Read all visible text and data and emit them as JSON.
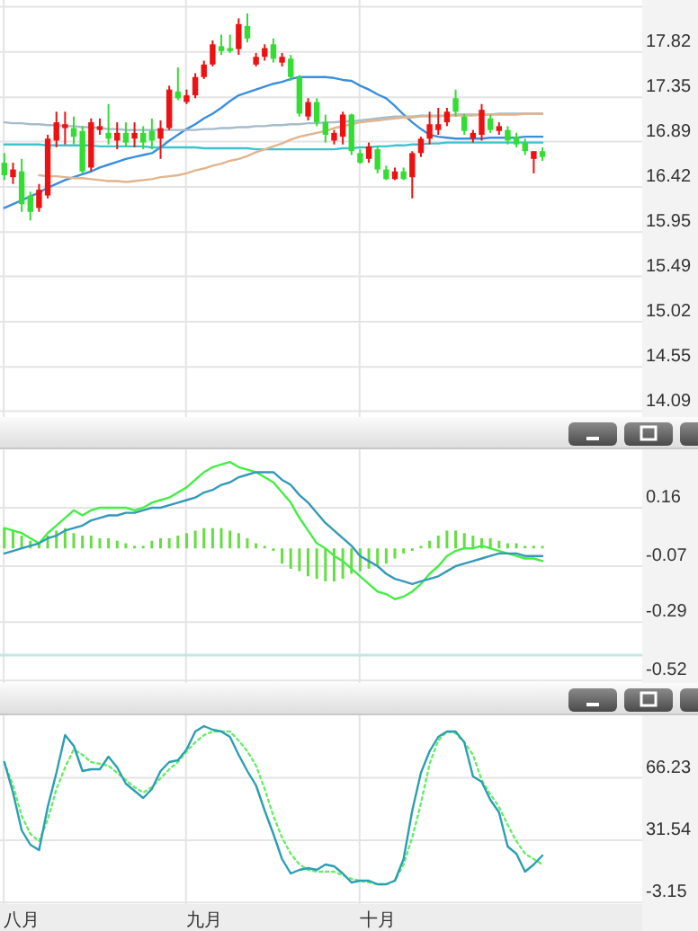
{
  "chart_data": [
    {
      "type": "candlestick",
      "categories": [
        null,
        null,
        null,
        null,
        null,
        null,
        null,
        null,
        null,
        null,
        null,
        null,
        null,
        null,
        null,
        null,
        null,
        null,
        null,
        null,
        null,
        null,
        null,
        null,
        null,
        null,
        null,
        null,
        null,
        null,
        null,
        null,
        null,
        null,
        null,
        null,
        null,
        null,
        null,
        null,
        null,
        null,
        null,
        null,
        null,
        null,
        null,
        null,
        null,
        null,
        null,
        null,
        null,
        null,
        null,
        null,
        null,
        null,
        null,
        null,
        null,
        null,
        null,
        null,
        null,
        null,
        null,
        null,
        null,
        null,
        null,
        null,
        null,
        null
      ],
      "ohlc": [
        [
          16.67,
          16.77,
          16.49,
          16.54
        ],
        [
          16.52,
          16.67,
          16.45,
          16.6
        ],
        [
          16.58,
          16.71,
          16.16,
          16.24
        ],
        [
          16.33,
          16.37,
          16.07,
          16.16
        ],
        [
          16.2,
          16.45,
          16.16,
          16.39
        ],
        [
          16.33,
          16.96,
          16.3,
          16.92
        ],
        [
          16.9,
          17.2,
          16.83,
          17.09
        ],
        [
          17.03,
          17.2,
          16.86,
          17.07
        ],
        [
          17.03,
          17.15,
          16.86,
          16.94
        ],
        [
          17.0,
          17.05,
          16.56,
          16.58
        ],
        [
          16.62,
          17.13,
          16.58,
          17.09
        ],
        [
          17.01,
          17.13,
          16.96,
          17.05
        ],
        [
          16.98,
          17.28,
          16.86,
          16.92
        ],
        [
          16.9,
          17.09,
          16.81,
          16.98
        ],
        [
          16.98,
          17.09,
          16.83,
          16.88
        ],
        [
          16.92,
          17.09,
          16.83,
          16.98
        ],
        [
          16.98,
          17.05,
          16.81,
          16.88
        ],
        [
          17.0,
          17.13,
          16.81,
          16.9
        ],
        [
          16.92,
          17.11,
          16.71,
          17.03
        ],
        [
          17.03,
          17.47,
          17.01,
          17.43
        ],
        [
          17.41,
          17.66,
          17.32,
          17.34
        ],
        [
          17.3,
          17.43,
          17.28,
          17.37
        ],
        [
          17.37,
          17.6,
          17.34,
          17.56
        ],
        [
          17.56,
          17.73,
          17.54,
          17.69
        ],
        [
          17.69,
          17.94,
          17.67,
          17.9
        ],
        [
          17.88,
          18.0,
          17.79,
          17.83
        ],
        [
          17.86,
          18.0,
          17.81,
          17.83
        ],
        [
          17.85,
          18.17,
          17.79,
          18.11
        ],
        [
          18.09,
          18.22,
          17.92,
          17.96
        ],
        [
          17.69,
          17.81,
          17.67,
          17.77
        ],
        [
          17.77,
          17.9,
          17.73,
          17.86
        ],
        [
          17.9,
          17.96,
          17.71,
          17.75
        ],
        [
          17.71,
          17.81,
          17.67,
          17.77
        ],
        [
          17.75,
          17.79,
          17.52,
          17.56
        ],
        [
          17.56,
          17.58,
          17.15,
          17.18
        ],
        [
          17.15,
          17.34,
          17.11,
          17.3
        ],
        [
          17.3,
          17.34,
          17.05,
          17.09
        ],
        [
          17.09,
          17.17,
          16.88,
          16.96
        ],
        [
          16.9,
          17.01,
          16.86,
          16.98
        ],
        [
          16.94,
          17.2,
          16.86,
          17.17
        ],
        [
          17.17,
          17.18,
          16.75,
          16.79
        ],
        [
          16.77,
          16.81,
          16.66,
          16.67
        ],
        [
          16.71,
          16.88,
          16.67,
          16.84
        ],
        [
          16.81,
          16.84,
          16.56,
          16.6
        ],
        [
          16.6,
          16.64,
          16.49,
          16.5
        ],
        [
          16.5,
          16.62,
          16.49,
          16.58
        ],
        [
          16.58,
          16.62,
          16.49,
          16.5
        ],
        [
          16.52,
          16.79,
          16.3,
          16.77
        ],
        [
          16.77,
          16.94,
          16.73,
          16.92
        ],
        [
          16.92,
          17.2,
          16.86,
          17.07
        ],
        [
          17.01,
          17.24,
          16.96,
          17.07
        ],
        [
          17.09,
          17.24,
          17.05,
          17.2
        ],
        [
          17.34,
          17.43,
          17.15,
          17.2
        ],
        [
          17.15,
          17.18,
          16.96,
          17.0
        ],
        [
          16.92,
          17.01,
          16.88,
          16.98
        ],
        [
          16.96,
          17.28,
          16.9,
          17.22
        ],
        [
          17.13,
          17.17,
          16.98,
          17.01
        ],
        [
          17.0,
          17.09,
          16.96,
          17.05
        ],
        [
          17.01,
          17.05,
          16.86,
          16.9
        ],
        [
          16.94,
          16.98,
          16.83,
          16.86
        ],
        [
          16.88,
          16.92,
          16.75,
          16.79
        ],
        [
          16.71,
          16.79,
          16.56,
          16.79
        ],
        [
          16.79,
          16.83,
          16.69,
          16.73
        ],
        null,
        null,
        null,
        null,
        null,
        null,
        null,
        null,
        null,
        null,
        null
      ],
      "series": [
        {
          "type": "line",
          "color": "#3a8ede",
          "values": [
            16.2,
            16.24,
            16.28,
            16.32,
            16.36,
            16.41,
            16.45,
            16.49,
            16.52,
            16.55,
            16.58,
            16.62,
            16.65,
            16.68,
            16.71,
            16.73,
            16.75,
            16.77,
            16.83,
            16.9,
            16.96,
            17.02,
            17.07,
            17.13,
            17.18,
            17.24,
            17.31,
            17.37,
            17.4,
            17.43,
            17.46,
            17.49,
            17.51,
            17.54,
            17.56,
            17.56,
            17.56,
            17.56,
            17.55,
            17.53,
            17.52,
            17.47,
            17.43,
            17.38,
            17.34,
            17.26,
            17.17,
            17.09,
            17.02,
            16.96,
            16.94,
            16.93,
            16.92,
            16.92,
            16.92,
            16.92,
            16.93,
            16.93,
            16.93,
            16.93,
            16.94,
            16.94,
            16.94,
            null,
            null,
            null,
            null,
            null,
            null,
            null,
            null,
            null,
            null,
            null
          ]
        },
        {
          "type": "line",
          "color": "#a4bccb",
          "values": [
            17.09,
            17.08,
            17.08,
            17.07,
            17.07,
            17.06,
            17.06,
            17.05,
            17.05,
            17.04,
            17.04,
            17.03,
            17.02,
            17.02,
            17.01,
            17.01,
            17.01,
            17.01,
            17.01,
            17.01,
            17.01,
            17.01,
            17.01,
            17.02,
            17.02,
            17.03,
            17.03,
            17.04,
            17.04,
            17.05,
            17.05,
            17.06,
            17.06,
            17.07,
            17.07,
            17.08,
            17.08,
            17.09,
            17.09,
            17.1,
            17.1,
            17.11,
            17.12,
            17.13,
            17.14,
            17.15,
            17.15,
            17.15,
            17.16,
            17.16,
            17.16,
            17.16,
            17.17,
            17.17,
            17.17,
            17.17,
            17.17,
            17.18,
            17.18,
            17.18,
            17.18,
            17.18,
            17.18,
            null,
            null,
            null,
            null,
            null,
            null,
            null,
            null,
            null,
            null,
            null
          ]
        },
        {
          "type": "line",
          "color": "#3cc4cc",
          "values": [
            16.86,
            16.86,
            16.86,
            16.86,
            16.86,
            16.85,
            16.85,
            16.85,
            16.85,
            16.85,
            16.85,
            16.84,
            16.84,
            16.84,
            16.84,
            16.84,
            16.84,
            16.83,
            16.83,
            16.83,
            16.83,
            16.83,
            16.83,
            16.82,
            16.82,
            16.82,
            16.82,
            16.82,
            16.82,
            16.81,
            16.81,
            16.81,
            16.81,
            16.81,
            16.81,
            16.81,
            16.81,
            16.81,
            16.81,
            16.82,
            16.82,
            16.83,
            16.83,
            16.84,
            16.84,
            16.85,
            16.85,
            16.86,
            16.86,
            16.87,
            16.87,
            16.88,
            16.88,
            16.88,
            16.88,
            16.88,
            16.88,
            16.88,
            16.88,
            16.88,
            16.88,
            16.88,
            16.88,
            null,
            null,
            null,
            null,
            null,
            null,
            null,
            null,
            null,
            null,
            null
          ]
        },
        {
          "type": "line",
          "color": "#e2b48c",
          "values": [
            null,
            null,
            null,
            null,
            16.54,
            16.53,
            16.53,
            16.52,
            16.51,
            16.51,
            16.5,
            16.49,
            16.48,
            16.48,
            16.47,
            16.48,
            16.49,
            16.5,
            16.52,
            16.53,
            16.54,
            16.56,
            16.59,
            16.61,
            16.64,
            16.66,
            16.69,
            16.71,
            16.74,
            16.78,
            16.81,
            16.84,
            16.87,
            16.91,
            16.94,
            16.96,
            16.98,
            17.0,
            17.03,
            17.05,
            17.07,
            17.09,
            17.1,
            17.11,
            17.12,
            17.13,
            17.14,
            17.14,
            17.15,
            17.15,
            17.15,
            17.16,
            17.16,
            17.16,
            17.16,
            17.17,
            17.17,
            17.17,
            17.17,
            17.17,
            17.18,
            17.18,
            17.18,
            null,
            null,
            null,
            null,
            null,
            null,
            null,
            null,
            null,
            null,
            null
          ]
        }
      ],
      "ylim": [
        14.03,
        18.36
      ],
      "yticks": [
        14.09,
        14.55,
        15.02,
        15.49,
        15.95,
        16.42,
        16.89,
        17.35,
        17.82,
        {
          "value": 18.29,
          "label": null
        }
      ],
      "grid": true,
      "tick_labels": "y"
    },
    {
      "type": "bar",
      "categories": [
        null,
        null,
        null,
        null,
        null,
        null,
        null,
        null,
        null,
        null,
        null,
        null,
        null,
        null,
        null,
        null,
        null,
        null,
        null,
        null,
        null,
        null,
        null,
        null,
        null,
        null,
        null,
        null,
        null,
        null,
        null,
        null,
        null,
        null,
        null,
        null,
        null,
        null,
        null,
        null,
        null,
        null,
        null,
        null,
        null,
        null,
        null,
        null,
        null,
        null,
        null,
        null,
        null,
        null,
        null,
        null,
        null,
        null,
        null,
        null,
        null,
        null,
        null,
        null,
        null,
        null,
        null,
        null,
        null,
        null,
        null,
        null,
        null,
        null
      ],
      "series": [
        {
          "type": "bar",
          "color": "#66dd44",
          "values": [
            0.08,
            0.07,
            0.05,
            0.03,
            0.02,
            0.05,
            0.07,
            0.08,
            0.06,
            0.05,
            0.05,
            0.04,
            0.04,
            0.03,
            0.02,
            0.01,
            0.01,
            0.03,
            0.04,
            0.04,
            0.05,
            0.06,
            0.07,
            0.08,
            0.08,
            0.08,
            0.07,
            0.06,
            0.04,
            0.02,
            0.01,
            -0.01,
            -0.06,
            -0.08,
            -0.09,
            -0.11,
            -0.12,
            -0.13,
            -0.13,
            -0.12,
            -0.1,
            -0.09,
            -0.08,
            -0.07,
            -0.06,
            -0.04,
            -0.02,
            -0.01,
            0.01,
            0.03,
            0.05,
            0.07,
            0.07,
            0.06,
            0.05,
            0.04,
            0.04,
            0.03,
            0.02,
            0.02,
            0.01,
            0.01,
            0.01,
            null,
            null,
            null,
            null,
            null,
            null,
            null,
            null,
            null,
            null,
            null
          ]
        },
        {
          "type": "line",
          "color": "#44ee44",
          "values": [
            0.08,
            0.07,
            0.06,
            0.04,
            0.02,
            0.06,
            0.09,
            0.12,
            0.15,
            0.13,
            0.15,
            0.16,
            0.16,
            0.16,
            0.16,
            0.15,
            0.16,
            0.18,
            0.19,
            0.2,
            0.22,
            0.24,
            0.27,
            0.3,
            0.32,
            0.33,
            0.34,
            0.32,
            0.31,
            0.3,
            0.28,
            0.26,
            0.22,
            0.18,
            0.12,
            0.07,
            0.02,
            0.0,
            -0.03,
            -0.05,
            -0.08,
            -0.11,
            -0.14,
            -0.17,
            -0.18,
            -0.2,
            -0.19,
            -0.17,
            -0.14,
            -0.1,
            -0.07,
            -0.03,
            -0.01,
            0.0,
            0.0,
            0.01,
            0.0,
            -0.01,
            -0.02,
            -0.03,
            -0.04,
            -0.04,
            -0.05,
            null,
            null,
            null,
            null,
            null,
            null,
            null,
            null,
            null,
            null,
            null
          ]
        },
        {
          "type": "line",
          "color": "#3399bb",
          "values": [
            -0.02,
            -0.01,
            0.0,
            0.01,
            0.02,
            0.04,
            0.05,
            0.07,
            0.08,
            0.09,
            0.11,
            0.12,
            0.13,
            0.13,
            0.14,
            0.14,
            0.15,
            0.16,
            0.16,
            0.17,
            0.18,
            0.19,
            0.2,
            0.22,
            0.23,
            0.25,
            0.26,
            0.28,
            0.29,
            0.3,
            0.3,
            0.3,
            0.27,
            0.25,
            0.21,
            0.18,
            0.14,
            0.1,
            0.07,
            0.04,
            0.01,
            -0.03,
            -0.05,
            -0.07,
            -0.1,
            -0.12,
            -0.13,
            -0.14,
            -0.13,
            -0.12,
            -0.11,
            -0.09,
            -0.07,
            -0.06,
            -0.05,
            -0.04,
            -0.03,
            -0.02,
            -0.02,
            -0.02,
            -0.03,
            -0.03,
            -0.03,
            null,
            null,
            null,
            null,
            null,
            null,
            null,
            null,
            null,
            null,
            null
          ]
        }
      ],
      "ylim": [
        -0.53,
        0.39
      ],
      "yticks": [
        -0.52,
        -0.29,
        -0.07,
        0.16
      ],
      "grid": true,
      "ref_lines": [
        {
          "axis": "y",
          "value": -0.42,
          "color": "#c6e6e2"
        }
      ],
      "tick_labels": "y"
    },
    {
      "type": "line",
      "categories": [
        null,
        null,
        "八月",
        null,
        null,
        null,
        null,
        null,
        null,
        null,
        null,
        null,
        null,
        null,
        null,
        null,
        null,
        null,
        null,
        null,
        null,
        null,
        null,
        "九月",
        null,
        null,
        null,
        null,
        null,
        null,
        null,
        null,
        null,
        null,
        null,
        null,
        null,
        null,
        null,
        null,
        null,
        null,
        null,
        "十月",
        null,
        null,
        null,
        null,
        null,
        null,
        null,
        null,
        null,
        null,
        null,
        null,
        null,
        null,
        null,
        null,
        null,
        null,
        null,
        null,
        null,
        null,
        null,
        null,
        null,
        null,
        null,
        null,
        null,
        null
      ],
      "series": [
        {
          "color": "#66ee66",
          "line_style": "dotted",
          "values": [
            75,
            62,
            45,
            35,
            31,
            43,
            60,
            72,
            82,
            79,
            75,
            74,
            73,
            69,
            65,
            61,
            58,
            61,
            66,
            71,
            75,
            81,
            86,
            90,
            92,
            92,
            92,
            87,
            81,
            73,
            60,
            45,
            33,
            24,
            18,
            15,
            14,
            14,
            14,
            12,
            10,
            9,
            8,
            7,
            7,
            9,
            18,
            33,
            52,
            74,
            87,
            92,
            91,
            86,
            79,
            65,
            57,
            50,
            40,
            31,
            24,
            21,
            18,
            null,
            null,
            null,
            null,
            null,
            null,
            null,
            null,
            null,
            null,
            null
          ]
        },
        {
          "color": "#2a9fb2",
          "line_style": "solid",
          "values": [
            75,
            58,
            37,
            29,
            26,
            50,
            69,
            90,
            84,
            70,
            71,
            71,
            78,
            72,
            63,
            59,
            55,
            60,
            70,
            75,
            76,
            82,
            92,
            95,
            93,
            92,
            89,
            79,
            70,
            62,
            48,
            35,
            21,
            13,
            15,
            16,
            15,
            18,
            17,
            13,
            8,
            9,
            9,
            7,
            7,
            9,
            21,
            48,
            69,
            81,
            89,
            92,
            92,
            86,
            67,
            64,
            54,
            47,
            28,
            24,
            14,
            18,
            23,
            null,
            null,
            null,
            null,
            null,
            null,
            null,
            null,
            null,
            null,
            null
          ]
        }
      ],
      "ylim": [
        -4,
        101
      ],
      "yticks": [
        -3.15,
        31.54,
        66.23
      ],
      "grid": true
    }
  ]
}
